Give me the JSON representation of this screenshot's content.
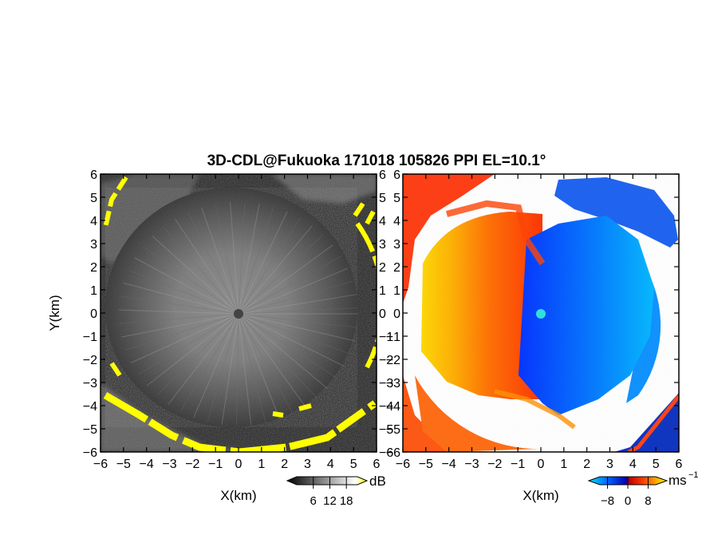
{
  "chart_data": [
    {
      "type": "heatmap",
      "name": "reflectivity",
      "title": "3D-CDL@Fukuoka 171018 105826 PPI EL=10.1°",
      "xlabel": "X(km)",
      "ylabel": "Y(km)",
      "xlim": [
        -6,
        6
      ],
      "ylim": [
        -6,
        6
      ],
      "x_ticks": [
        -6,
        -5,
        -4,
        -3,
        -2,
        -1,
        0,
        1,
        2,
        3,
        4,
        5,
        6
      ],
      "y_ticks": [
        -6,
        -5,
        -4,
        -3,
        -2,
        -1,
        0,
        1,
        2,
        3,
        4,
        5,
        6
      ],
      "x_tick_labels": [
        "−6",
        "−5",
        "−4",
        "−3",
        "−2",
        "−1",
        "0",
        "1",
        "2",
        "3",
        "4",
        "5",
        "6"
      ],
      "y_tick_labels": [
        "−6",
        "−5",
        "−4",
        "−3",
        "−2",
        "−1",
        "0",
        "1",
        "2",
        "3",
        "4",
        "5",
        "6"
      ],
      "colorbar": {
        "unit": "dB",
        "ticks": [
          6,
          12,
          18
        ],
        "tick_labels": [
          "6",
          "12",
          "18"
        ],
        "colors": [
          "#000000",
          "#ffffff",
          "#ffff00"
        ]
      },
      "features": [
        {
          "kind": "ring",
          "radius_km": 5.2,
          "value_note": "high echo (yellow) arcs"
        },
        {
          "kind": "center_dot",
          "x": 0,
          "y": 0
        }
      ]
    },
    {
      "type": "heatmap",
      "name": "doppler_velocity",
      "xlabel": "X(km)",
      "xlim": [
        -6,
        6
      ],
      "ylim": [
        -6,
        6
      ],
      "x_ticks": [
        -6,
        -5,
        -4,
        -3,
        -2,
        -1,
        0,
        1,
        2,
        3,
        4,
        5,
        6
      ],
      "x_tick_labels": [
        "−6",
        "−5",
        "−4",
        "−3",
        "−2",
        "−1",
        "0",
        "1",
        "2",
        "3",
        "4",
        "5",
        "6"
      ],
      "y_tick_labels": [
        "−6",
        "−5",
        "−4",
        "−3",
        "−2",
        "−1",
        "0",
        "1",
        "2",
        "3",
        "4",
        "5",
        "6"
      ],
      "colorbar": {
        "unit": "ms",
        "unit_exp": "−1",
        "ticks": [
          -8,
          0,
          8
        ],
        "tick_labels": [
          "−8",
          "0",
          "8"
        ],
        "colors": [
          "#00e0ff",
          "#0060ff",
          "#0000c0",
          "#c00000",
          "#ff4000",
          "#ffa000",
          "#ffff00"
        ]
      }
    }
  ],
  "icons": {
    "center_marker_left": "dark-dot",
    "center_marker_right": "cyan-dot"
  }
}
